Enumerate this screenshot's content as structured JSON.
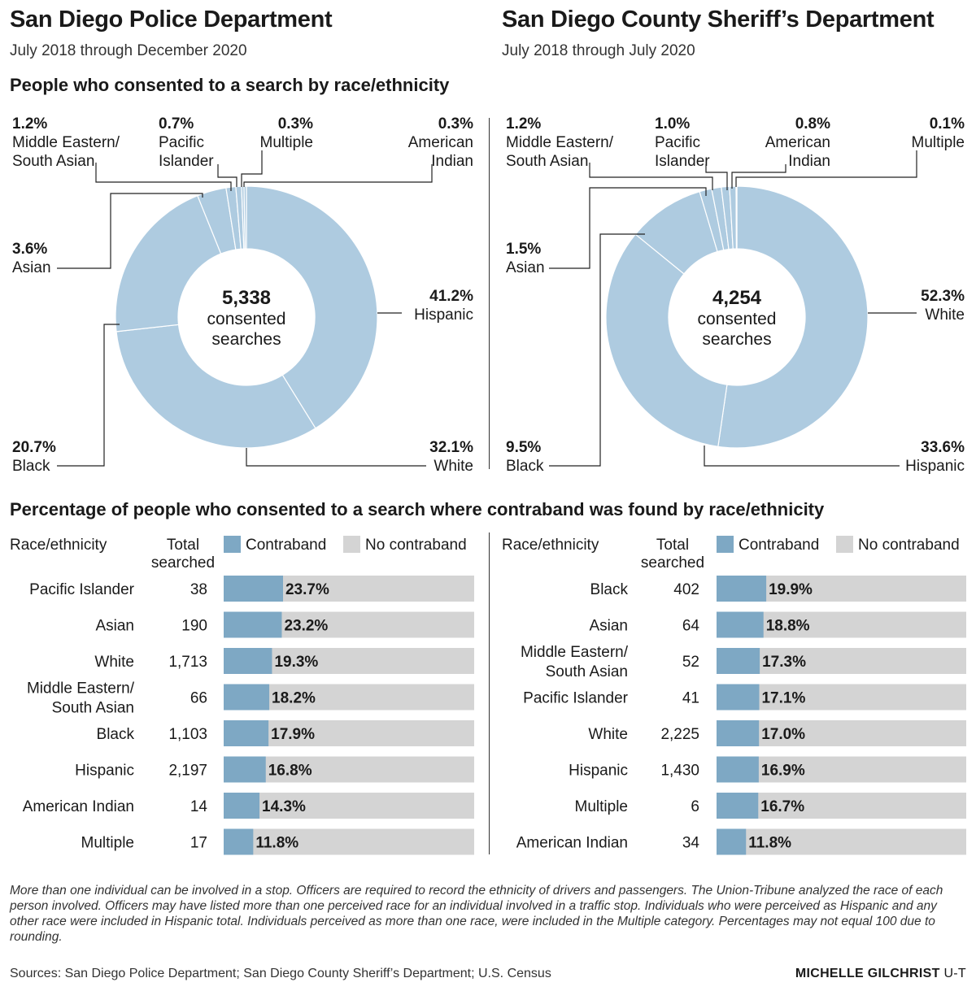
{
  "left_agency": {
    "title": "San Diego Police Department",
    "subtitle": "July 2018 through December 2020"
  },
  "right_agency": {
    "title": "San Diego County Sheriff’s Department",
    "subtitle": "July 2018 through July 2020"
  },
  "donut_section_title": "People who consented to a search by race/ethnicity",
  "bar_section_title": "Percentage of people who consented to a search where contraband was found by race/ethnicity",
  "table_headers": {
    "race": "Race/ethnicity",
    "total_line1": "Total",
    "total_line2": "searched",
    "contraband": "Contraband",
    "no_contraband": "No contraband"
  },
  "colors": {
    "donut_fill": "#aecbe0",
    "contraband_bar": "#7ea8c4",
    "no_contraband_bar": "#d4d4d4",
    "text": "#1a1a1a"
  },
  "chart_data": [
    {
      "type": "pie",
      "title": "San Diego Police Department – consented searches by race/ethnicity",
      "center_number": "5,338",
      "center_label_line1": "consented",
      "center_label_line2": "searches",
      "slices": [
        {
          "label": "Hispanic",
          "value": 41.2,
          "pct_text": "41.2%"
        },
        {
          "label": "White",
          "value": 32.1,
          "pct_text": "32.1%"
        },
        {
          "label": "Black",
          "value": 20.7,
          "pct_text": "20.7%"
        },
        {
          "label": "Asian",
          "value": 3.6,
          "pct_text": "3.6%"
        },
        {
          "label": "Middle Eastern/ South Asian",
          "label_line1": "Middle Eastern/",
          "label_line2": "South Asian",
          "value": 1.2,
          "pct_text": "1.2%"
        },
        {
          "label": "Pacific Islander",
          "label_line1": "Pacific",
          "label_line2": "Islander",
          "value": 0.7,
          "pct_text": "0.7%"
        },
        {
          "label": "Multiple",
          "value": 0.3,
          "pct_text": "0.3%"
        },
        {
          "label": "American Indian",
          "label_line1": "American",
          "label_line2": "Indian",
          "value": 0.3,
          "pct_text": "0.3%"
        }
      ]
    },
    {
      "type": "pie",
      "title": "San Diego County Sheriff’s Department – consented searches by race/ethnicity",
      "center_number": "4,254",
      "center_label_line1": "consented",
      "center_label_line2": "searches",
      "slices": [
        {
          "label": "White",
          "value": 52.3,
          "pct_text": "52.3%"
        },
        {
          "label": "Hispanic",
          "value": 33.6,
          "pct_text": "33.6%"
        },
        {
          "label": "Black",
          "value": 9.5,
          "pct_text": "9.5%"
        },
        {
          "label": "Asian",
          "value": 1.5,
          "pct_text": "1.5%"
        },
        {
          "label": "Middle Eastern/ South Asian",
          "label_line1": "Middle Eastern/",
          "label_line2": "South Asian",
          "value": 1.2,
          "pct_text": "1.2%"
        },
        {
          "label": "Pacific Islander",
          "label_line1": "Pacific",
          "label_line2": "Islander",
          "value": 1.0,
          "pct_text": "1.0%"
        },
        {
          "label": "American Indian",
          "label_line1": "American",
          "label_line2": "Indian",
          "value": 0.8,
          "pct_text": "0.8%"
        },
        {
          "label": "Multiple",
          "value": 0.1,
          "pct_text": "0.1%"
        }
      ]
    },
    {
      "type": "bar",
      "orientation": "horizontal",
      "stacked": true,
      "title": "San Diego Police Department – contraband found among consented searches",
      "xlim": [
        0,
        100
      ],
      "series": [
        {
          "name": "Contraband"
        },
        {
          "name": "No contraband"
        }
      ],
      "rows": [
        {
          "label": "Pacific Islander",
          "total": "38",
          "contraband_pct": 23.7,
          "pct_text": "23.7%"
        },
        {
          "label": "Asian",
          "total": "190",
          "contraband_pct": 23.2,
          "pct_text": "23.2%"
        },
        {
          "label": "White",
          "total": "1,713",
          "contraband_pct": 19.3,
          "pct_text": "19.3%"
        },
        {
          "label": "Middle Eastern/ South Asian",
          "label_line1": "Middle Eastern/",
          "label_line2": "South Asian",
          "total": "66",
          "contraband_pct": 18.2,
          "pct_text": "18.2%"
        },
        {
          "label": "Black",
          "total": "1,103",
          "contraband_pct": 17.9,
          "pct_text": "17.9%"
        },
        {
          "label": "Hispanic",
          "total": "2,197",
          "contraband_pct": 16.8,
          "pct_text": "16.8%"
        },
        {
          "label": "American Indian",
          "total": "14",
          "contraband_pct": 14.3,
          "pct_text": "14.3%"
        },
        {
          "label": "Multiple",
          "total": "17",
          "contraband_pct": 11.8,
          "pct_text": "11.8%"
        }
      ]
    },
    {
      "type": "bar",
      "orientation": "horizontal",
      "stacked": true,
      "title": "San Diego County Sheriff’s Department – contraband found among consented searches",
      "xlim": [
        0,
        100
      ],
      "series": [
        {
          "name": "Contraband"
        },
        {
          "name": "No contraband"
        }
      ],
      "rows": [
        {
          "label": "Black",
          "total": "402",
          "contraband_pct": 19.9,
          "pct_text": "19.9%"
        },
        {
          "label": "Asian",
          "total": "64",
          "contraband_pct": 18.8,
          "pct_text": "18.8%"
        },
        {
          "label": "Middle Eastern/ South Asian",
          "label_line1": "Middle Eastern/",
          "label_line2": "South Asian",
          "total": "52",
          "contraband_pct": 17.3,
          "pct_text": "17.3%"
        },
        {
          "label": "Pacific Islander",
          "total": "41",
          "contraband_pct": 17.1,
          "pct_text": "17.1%"
        },
        {
          "label": "White",
          "total": "2,225",
          "contraband_pct": 17.0,
          "pct_text": "17.0%"
        },
        {
          "label": "Hispanic",
          "total": "1,430",
          "contraband_pct": 16.9,
          "pct_text": "16.9%"
        },
        {
          "label": "Multiple",
          "total": "6",
          "contraband_pct": 16.7,
          "pct_text": "16.7%"
        },
        {
          "label": "American Indian",
          "total": "34",
          "contraband_pct": 11.8,
          "pct_text": "11.8%"
        }
      ]
    }
  ],
  "footnote": "More than one individual can be involved in a stop. Officers are required to record the ethnicity of drivers and passengers. The Union-Tribune analyzed the race of each person involved. Officers may have listed more than one perceived race for an individual involved in a traffic stop. Individuals who were perceived as Hispanic and any other race were included in Hispanic total. Individuals perceived as more than one race, were included in the Multiple category. Percentages may not equal 100 due to rounding.",
  "sources": "Sources: San Diego Police Department; San Diego County Sheriff’s Department; U.S. Census",
  "credit": {
    "name": "MICHELLE GILCHRIST",
    "org": "U-T"
  }
}
